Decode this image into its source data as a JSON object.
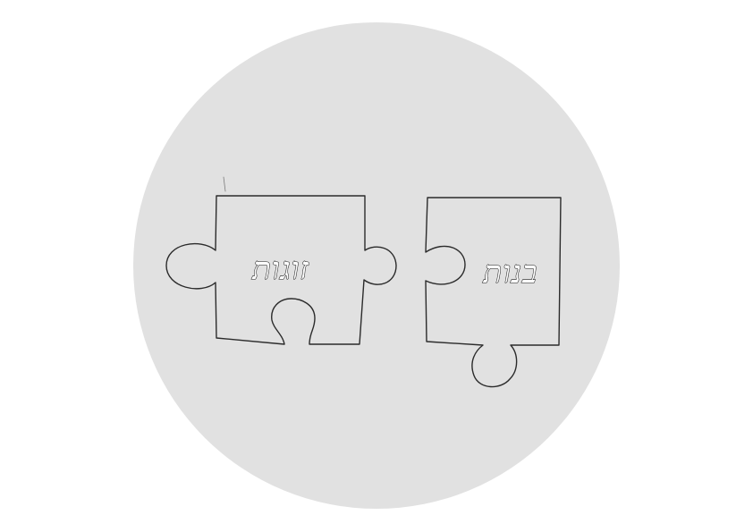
{
  "background_color": "#ffffff",
  "circle_color": "#e1e1e1",
  "line_color": "#2b2b2b",
  "pieces": [
    {
      "word": "זוגות"
    },
    {
      "word": "בנות"
    }
  ]
}
